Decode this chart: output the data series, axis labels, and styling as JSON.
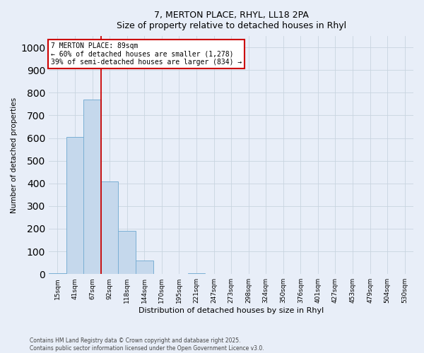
{
  "title_line1": "7, MERTON PLACE, RHYL, LL18 2PA",
  "title_line2": "Size of property relative to detached houses in Rhyl",
  "xlabel": "Distribution of detached houses by size in Rhyl",
  "ylabel": "Number of detached properties",
  "categories": [
    "15sqm",
    "41sqm",
    "67sqm",
    "92sqm",
    "118sqm",
    "144sqm",
    "170sqm",
    "195sqm",
    "221sqm",
    "247sqm",
    "273sqm",
    "298sqm",
    "324sqm",
    "350sqm",
    "376sqm",
    "401sqm",
    "427sqm",
    "453sqm",
    "479sqm",
    "504sqm",
    "530sqm"
  ],
  "values": [
    5,
    605,
    770,
    410,
    190,
    60,
    0,
    0,
    5,
    0,
    0,
    0,
    0,
    0,
    0,
    0,
    0,
    0,
    0,
    0,
    0
  ],
  "bar_color": "#c5d8ec",
  "bar_edge_color": "#7aafd4",
  "grid_color": "#c8d4e0",
  "bg_color": "#e8eef8",
  "vline_x": 2.5,
  "vline_color": "#cc0000",
  "annotation_title": "7 MERTON PLACE: 89sqm",
  "annotation_line1": "← 60% of detached houses are smaller (1,278)",
  "annotation_line2": "39% of semi-detached houses are larger (834) →",
  "annotation_box_facecolor": "#ffffff",
  "annotation_border_color": "#cc0000",
  "ylim_max": 1050,
  "yticks": [
    0,
    100,
    200,
    300,
    400,
    500,
    600,
    700,
    800,
    900,
    1000
  ],
  "footnote_line1": "Contains HM Land Registry data © Crown copyright and database right 2025.",
  "footnote_line2": "Contains public sector information licensed under the Open Government Licence v3.0."
}
